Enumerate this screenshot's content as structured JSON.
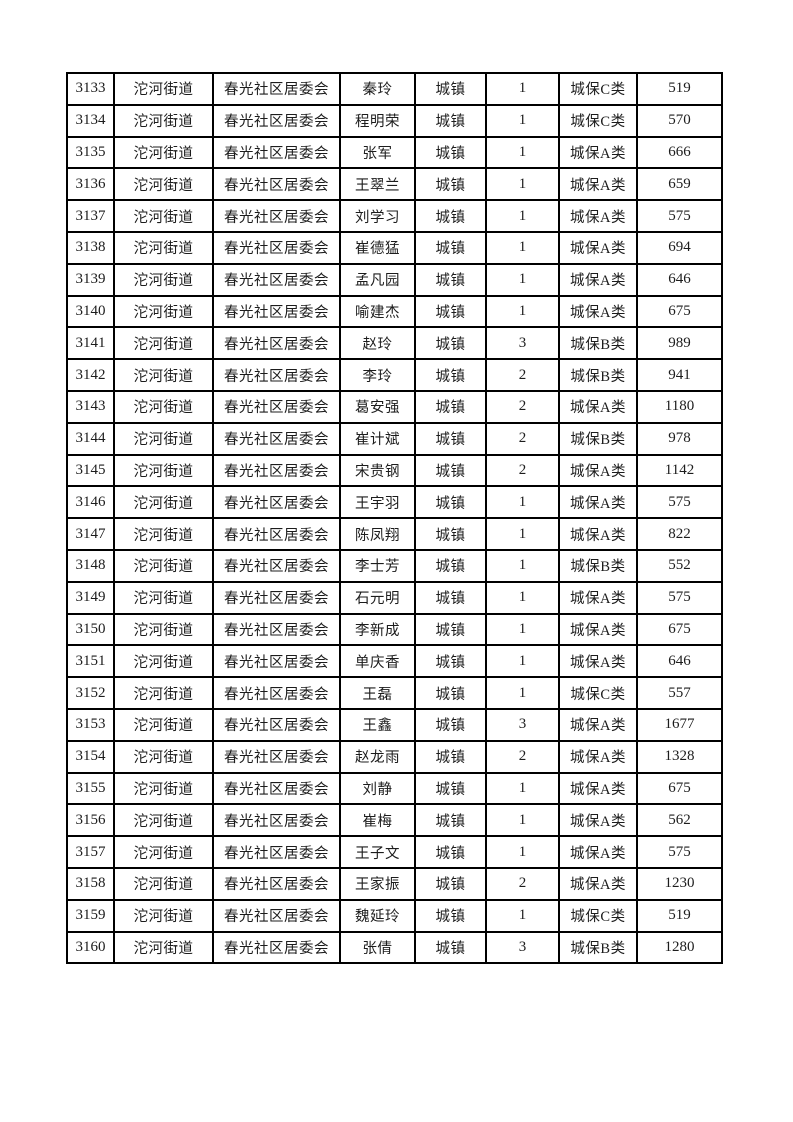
{
  "table": {
    "columns": [
      "serial",
      "street",
      "committee",
      "name",
      "type",
      "count",
      "category",
      "amount"
    ],
    "numeric_columns": [
      "serial",
      "count",
      "amount"
    ],
    "rows": [
      [
        "3133",
        "沱河街道",
        "春光社区居委会",
        "秦玲",
        "城镇",
        "1",
        "城保C类",
        "519"
      ],
      [
        "3134",
        "沱河街道",
        "春光社区居委会",
        "程明荣",
        "城镇",
        "1",
        "城保C类",
        "570"
      ],
      [
        "3135",
        "沱河街道",
        "春光社区居委会",
        "张军",
        "城镇",
        "1",
        "城保A类",
        "666"
      ],
      [
        "3136",
        "沱河街道",
        "春光社区居委会",
        "王翠兰",
        "城镇",
        "1",
        "城保A类",
        "659"
      ],
      [
        "3137",
        "沱河街道",
        "春光社区居委会",
        "刘学习",
        "城镇",
        "1",
        "城保A类",
        "575"
      ],
      [
        "3138",
        "沱河街道",
        "春光社区居委会",
        "崔德猛",
        "城镇",
        "1",
        "城保A类",
        "694"
      ],
      [
        "3139",
        "沱河街道",
        "春光社区居委会",
        "孟凡园",
        "城镇",
        "1",
        "城保A类",
        "646"
      ],
      [
        "3140",
        "沱河街道",
        "春光社区居委会",
        "喻建杰",
        "城镇",
        "1",
        "城保A类",
        "675"
      ],
      [
        "3141",
        "沱河街道",
        "春光社区居委会",
        "赵玲",
        "城镇",
        "3",
        "城保B类",
        "989"
      ],
      [
        "3142",
        "沱河街道",
        "春光社区居委会",
        "李玲",
        "城镇",
        "2",
        "城保B类",
        "941"
      ],
      [
        "3143",
        "沱河街道",
        "春光社区居委会",
        "葛安强",
        "城镇",
        "2",
        "城保A类",
        "1180"
      ],
      [
        "3144",
        "沱河街道",
        "春光社区居委会",
        "崔计斌",
        "城镇",
        "2",
        "城保B类",
        "978"
      ],
      [
        "3145",
        "沱河街道",
        "春光社区居委会",
        "宋贵钢",
        "城镇",
        "2",
        "城保A类",
        "1142"
      ],
      [
        "3146",
        "沱河街道",
        "春光社区居委会",
        "王宇羽",
        "城镇",
        "1",
        "城保A类",
        "575"
      ],
      [
        "3147",
        "沱河街道",
        "春光社区居委会",
        "陈凤翔",
        "城镇",
        "1",
        "城保A类",
        "822"
      ],
      [
        "3148",
        "沱河街道",
        "春光社区居委会",
        "李士芳",
        "城镇",
        "1",
        "城保B类",
        "552"
      ],
      [
        "3149",
        "沱河街道",
        "春光社区居委会",
        "石元明",
        "城镇",
        "1",
        "城保A类",
        "575"
      ],
      [
        "3150",
        "沱河街道",
        "春光社区居委会",
        "李新成",
        "城镇",
        "1",
        "城保A类",
        "675"
      ],
      [
        "3151",
        "沱河街道",
        "春光社区居委会",
        "单庆香",
        "城镇",
        "1",
        "城保A类",
        "646"
      ],
      [
        "3152",
        "沱河街道",
        "春光社区居委会",
        "王磊",
        "城镇",
        "1",
        "城保C类",
        "557"
      ],
      [
        "3153",
        "沱河街道",
        "春光社区居委会",
        "王鑫",
        "城镇",
        "3",
        "城保A类",
        "1677"
      ],
      [
        "3154",
        "沱河街道",
        "春光社区居委会",
        "赵龙雨",
        "城镇",
        "2",
        "城保A类",
        "1328"
      ],
      [
        "3155",
        "沱河街道",
        "春光社区居委会",
        "刘静",
        "城镇",
        "1",
        "城保A类",
        "675"
      ],
      [
        "3156",
        "沱河街道",
        "春光社区居委会",
        "崔梅",
        "城镇",
        "1",
        "城保A类",
        "562"
      ],
      [
        "3157",
        "沱河街道",
        "春光社区居委会",
        "王子文",
        "城镇",
        "1",
        "城保A类",
        "575"
      ],
      [
        "3158",
        "沱河街道",
        "春光社区居委会",
        "王家振",
        "城镇",
        "2",
        "城保A类",
        "1230"
      ],
      [
        "3159",
        "沱河街道",
        "春光社区居委会",
        "魏延玲",
        "城镇",
        "1",
        "城保C类",
        "519"
      ],
      [
        "3160",
        "沱河街道",
        "春光社区居委会",
        "张倩",
        "城镇",
        "3",
        "城保B类",
        "1280"
      ]
    ]
  }
}
